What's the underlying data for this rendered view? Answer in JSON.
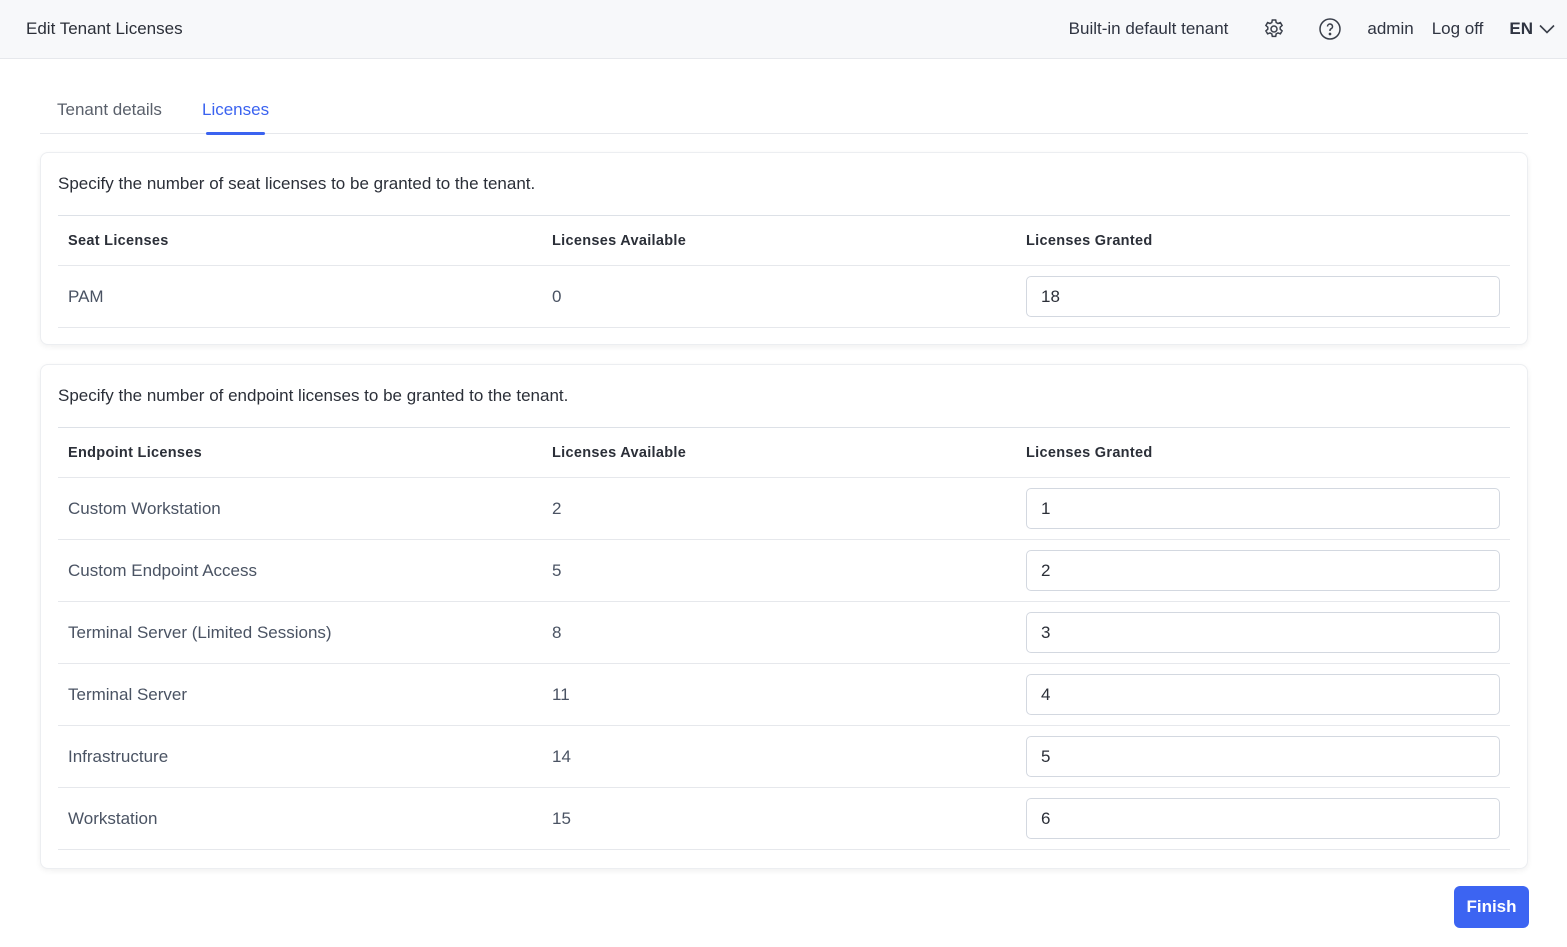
{
  "header": {
    "title": "Edit Tenant Licenses",
    "tenant": "Built-in default tenant",
    "user": "admin",
    "logoff": "Log off",
    "language": "EN"
  },
  "tabs": [
    {
      "label": "Tenant details",
      "active": false
    },
    {
      "label": "Licenses",
      "active": true
    }
  ],
  "seat": {
    "description": "Specify the number of seat licenses to be granted to the tenant.",
    "columns": [
      "Seat Licenses",
      "Licenses Available",
      "Licenses Granted"
    ],
    "rows": [
      {
        "name": "PAM",
        "available": "0",
        "granted": "18"
      }
    ]
  },
  "endpoint": {
    "description": "Specify the number of endpoint licenses to be granted to the tenant.",
    "columns": [
      "Endpoint Licenses",
      "Licenses Available",
      "Licenses Granted"
    ],
    "rows": [
      {
        "name": "Custom Workstation",
        "available": "2",
        "granted": "1"
      },
      {
        "name": "Custom Endpoint Access",
        "available": "5",
        "granted": "2"
      },
      {
        "name": "Terminal Server (Limited Sessions)",
        "available": "8",
        "granted": "3"
      },
      {
        "name": "Terminal Server",
        "available": "11",
        "granted": "4"
      },
      {
        "name": "Infrastructure",
        "available": "14",
        "granted": "5"
      },
      {
        "name": "Workstation",
        "available": "15",
        "granted": "6"
      }
    ]
  },
  "finish_label": "Finish",
  "colors": {
    "accent": "#3c64f2",
    "header_bg": "#f7f8fa"
  }
}
